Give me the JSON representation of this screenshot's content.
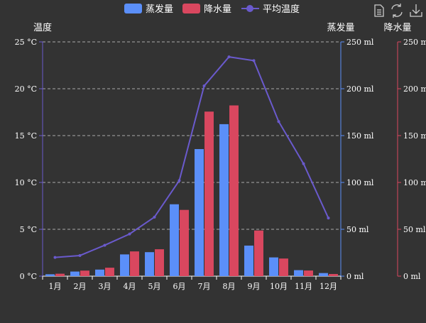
{
  "legend": {
    "evap": "蒸发量",
    "rain": "降水量",
    "temp": "平均温度"
  },
  "toolbox": {
    "data_view": "data-view-icon",
    "restore": "restore-icon",
    "save": "save-as-image-icon"
  },
  "colors": {
    "background": "#333333",
    "evap": "#5b8ff9",
    "rain": "#d9475f",
    "temp": "#6a5acd",
    "evap_axis": "#5b8ff9",
    "rain_axis": "#d9475f",
    "temp_axis": "#6a5acd"
  },
  "chart_data": {
    "type": "bar",
    "categories": [
      "1月",
      "2月",
      "3月",
      "4月",
      "5月",
      "6月",
      "7月",
      "8月",
      "9月",
      "10月",
      "11月",
      "12月"
    ],
    "series": [
      {
        "name": "蒸发量",
        "type": "bar",
        "yAxis": 1,
        "values": [
          2.0,
          4.9,
          7.0,
          23.2,
          25.6,
          76.7,
          135.6,
          162.2,
          32.6,
          20.0,
          6.4,
          3.3
        ]
      },
      {
        "name": "降水量",
        "type": "bar",
        "yAxis": 2,
        "values": [
          2.6,
          5.9,
          9.0,
          26.4,
          28.7,
          70.7,
          175.6,
          182.2,
          48.7,
          18.8,
          6.0,
          2.3
        ]
      },
      {
        "name": "平均温度",
        "type": "line",
        "yAxis": 0,
        "values": [
          2.0,
          2.2,
          3.3,
          4.5,
          6.3,
          10.2,
          20.3,
          23.4,
          23.0,
          16.5,
          12.0,
          6.2
        ]
      }
    ],
    "y_axes": [
      {
        "name": "温度",
        "min": 0,
        "max": 25,
        "ticks": [
          "0 °C",
          "5 °C",
          "10 °C",
          "15 °C",
          "20 °C",
          "25 °C"
        ],
        "position": "left"
      },
      {
        "name": "蒸发量",
        "min": 0,
        "max": 250,
        "ticks": [
          "0 ml",
          "50 ml",
          "100 ml",
          "150 ml",
          "200 ml",
          "250 ml"
        ],
        "position": "right"
      },
      {
        "name": "降水量",
        "min": 0,
        "max": 250,
        "ticks": [
          "0 ml",
          "50 ml",
          "100 ml",
          "150 ml",
          "200 ml",
          "250 ml"
        ],
        "position": "right-offset"
      }
    ],
    "grid": true,
    "legend_position": "top-center"
  }
}
